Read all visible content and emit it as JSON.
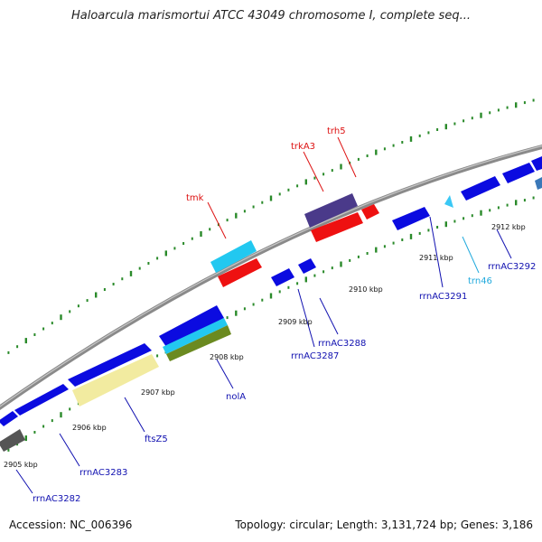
{
  "title": "Haloarcula marismortui ATCC 43049 chromosome I, complete seq...",
  "footer": {
    "accession": "Accession: NC_006396",
    "summary": "Topology: circular; Length: 3,131,724 bp; Genes: 3,186"
  },
  "colors": {
    "background": "#ffffff",
    "backbone": "#8c8c8c",
    "tick": "#2a8a2a",
    "gene_label_blue": "#1010b0",
    "gene_label_red": "#dd1111",
    "gene_label_cyan": "#22aadd",
    "feature_blue": "#0b0be0",
    "feature_red": "#ee1111",
    "feature_cyan": "#22c8f0",
    "feature_purple": "#4a3a8a",
    "feature_yellow": "#f2eba0",
    "feature_olive": "#6b8a20",
    "feature_grey": "#555555"
  },
  "scale_labels": [
    "2905 kbp",
    "2906 kbp",
    "2907 kbp",
    "2908 kbp",
    "2909 kbp",
    "2910 kbp",
    "2911 kbp",
    "2912 kbp"
  ],
  "gene_labels": {
    "tmk": "tmk",
    "trkA3": "trkA3",
    "trh5": "trh5",
    "rrnAC3291": "rrnAC3291",
    "trn46": "trn46",
    "rrnAC3292": "rrnAC3292",
    "rrnAC3288": "rrnAC3288",
    "rrnAC3287": "rrnAC3287",
    "nolA": "nolA",
    "ftsZ5": "ftsZ5",
    "rrnAC3283": "rrnAC3283",
    "rrnAC3282": "rrnAC3282"
  }
}
